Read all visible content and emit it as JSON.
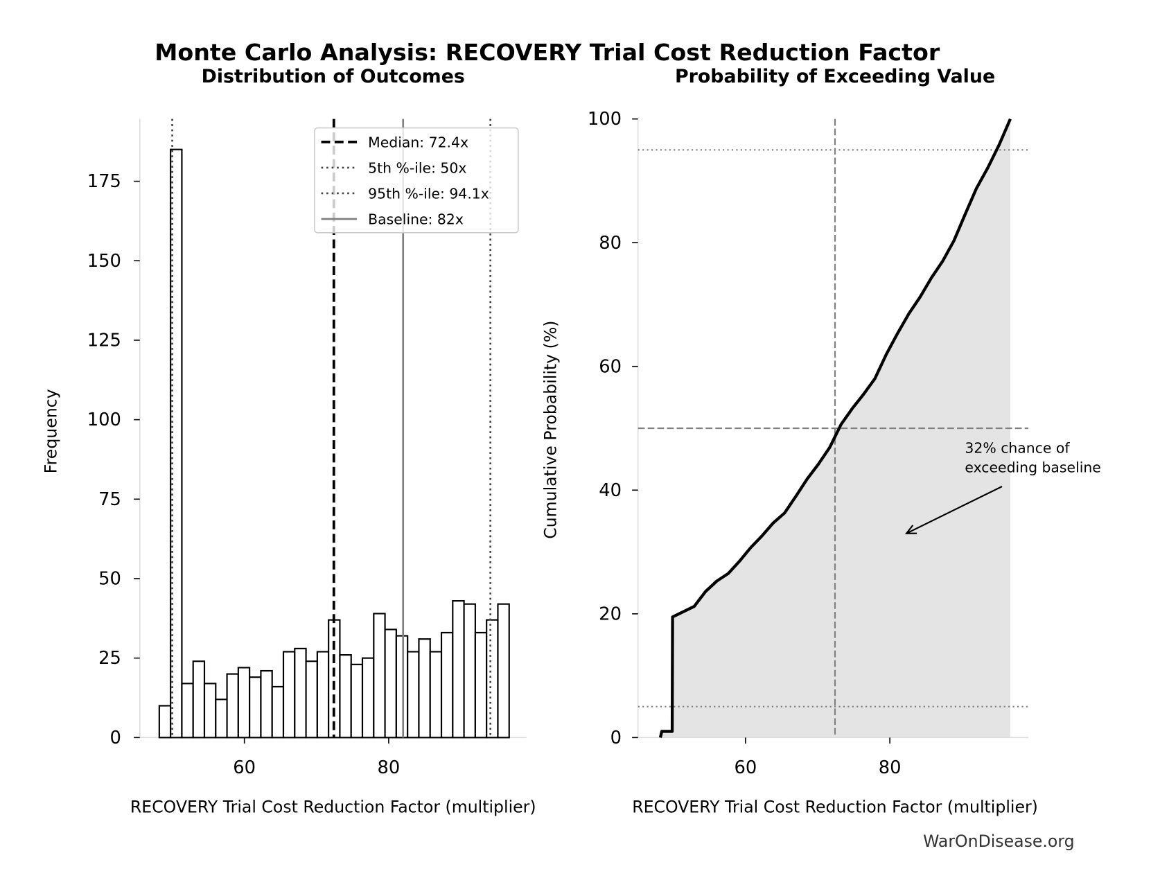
{
  "title": "Monte Carlo Analysis: RECOVERY Trial Cost Reduction Factor",
  "footer": "WarOnDisease.org",
  "colors": {
    "bar_edge": "#000000",
    "bar_fill": "#ffffff",
    "baseline": "#808080",
    "fill": "#e4e4e4",
    "ref_lines": "#808080"
  },
  "chart_data": [
    {
      "type": "bar",
      "title": "Distribution of Outcomes",
      "xlabel": "RECOVERY Trial Cost Reduction Factor (multiplier)",
      "ylabel": "Frequency",
      "bin_range": [
        48.2,
        96.7
      ],
      "values": [
        10,
        185,
        17,
        24,
        17,
        12,
        20,
        22,
        19,
        21,
        16,
        27,
        28,
        24,
        27,
        37,
        26,
        23,
        25,
        39,
        34,
        32,
        27,
        31,
        27,
        33,
        43,
        42,
        33,
        37,
        42
      ],
      "xlim": [
        45.5,
        99.1
      ],
      "ylim": [
        0,
        194.6
      ],
      "xticks": [
        60,
        80
      ],
      "yticks": [
        0,
        25,
        50,
        75,
        100,
        125,
        150,
        175
      ],
      "grid": false,
      "legend_position": "top-right",
      "reference_lines": [
        {
          "label": "Median: 72.4x",
          "value": 72.4,
          "style": "dashed",
          "color": "#000000"
        },
        {
          "label": "5th %-ile: 50x",
          "value": 50,
          "style": "dotted",
          "color": "#444444"
        },
        {
          "label": "95th %-ile: 94.1x",
          "value": 94.1,
          "style": "dotted",
          "color": "#444444"
        },
        {
          "label": "Baseline: 82x",
          "value": 82,
          "style": "solid",
          "color": "#808080"
        }
      ]
    },
    {
      "type": "area",
      "title": "Probability of Exceeding Value",
      "xlabel": "RECOVERY Trial Cost Reduction Factor (multiplier)",
      "ylabel": "Cumulative Probability (%)",
      "xlim": [
        45.1,
        99.2
      ],
      "ylim": [
        0,
        100
      ],
      "xticks": [
        60,
        80
      ],
      "yticks": [
        0,
        20,
        40,
        60,
        80,
        100
      ],
      "grid": false,
      "horizontal_lines": [
        {
          "value": 5,
          "style": "dotted"
        },
        {
          "value": 50,
          "style": "dashed"
        },
        {
          "value": 95,
          "style": "dotted"
        }
      ],
      "vertical_lines": [
        {
          "value": 72.4,
          "style": "dashed"
        }
      ],
      "annotation": {
        "text_lines": [
          "32% chance of",
          "exceeding baseline"
        ],
        "text_at": [
          90.4,
          46
        ],
        "arrow_to": [
          82.3,
          33
        ]
      }
    }
  ]
}
